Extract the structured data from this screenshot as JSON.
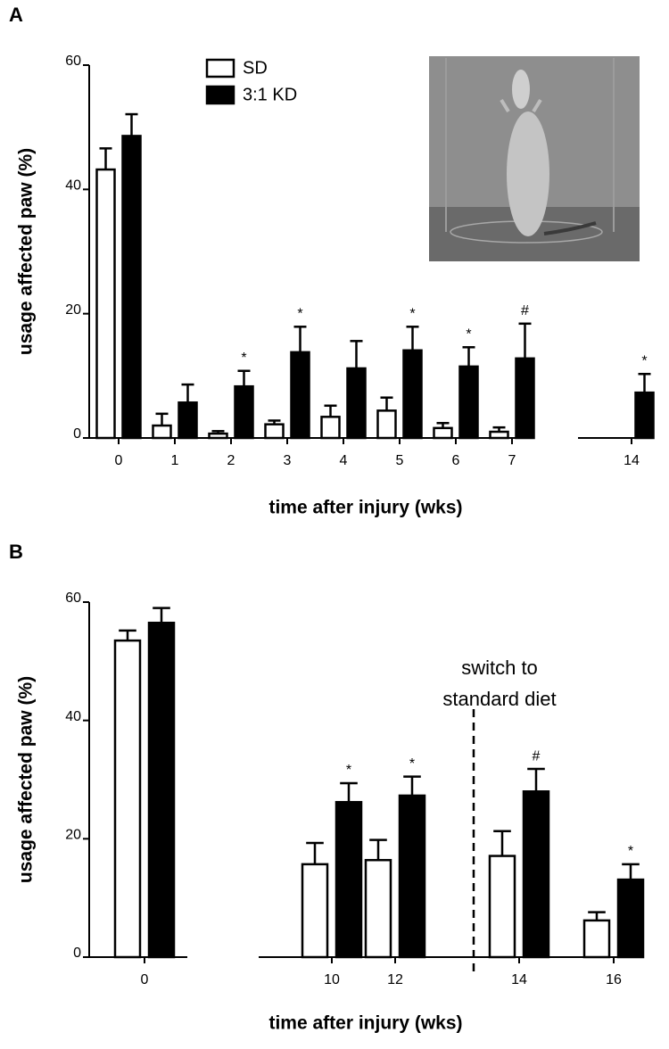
{
  "chart_data": [
    {
      "type": "bar",
      "panel": "A",
      "ylabel": "usage affected paw (%)",
      "xlabel": "time after injury (wks)",
      "categories": [
        "0",
        "1",
        "2",
        "3",
        "4",
        "5",
        "6",
        "7",
        "14"
      ],
      "series": [
        {
          "name": "SD",
          "color": "#ffffff",
          "values": [
            43.2,
            2.0,
            0.7,
            2.2,
            3.4,
            4.4,
            1.6,
            1.0,
            null
          ],
          "errors": [
            3.4,
            1.9,
            0.4,
            0.6,
            1.8,
            2.1,
            0.8,
            0.7,
            null
          ]
        },
        {
          "name": "3:1 KD",
          "color": "#000000",
          "values": [
            48.6,
            5.7,
            8.3,
            13.8,
            11.2,
            14.1,
            11.5,
            12.8,
            7.3
          ],
          "errors": [
            3.5,
            2.9,
            2.5,
            4.1,
            4.4,
            3.8,
            3.1,
            5.6,
            3.0
          ],
          "significance": [
            null,
            null,
            "*",
            "*",
            null,
            "*",
            "*",
            "#",
            "*"
          ]
        }
      ],
      "ylim": [
        0,
        60
      ],
      "yticks": [
        0,
        20,
        40,
        60
      ],
      "legend": "top-left"
    },
    {
      "type": "bar",
      "panel": "B",
      "ylabel": "usage affected paw (%)",
      "xlabel": "time after injury (wks)",
      "annotation": [
        "switch to",
        "standard diet"
      ],
      "categories": [
        "0",
        "10",
        "12",
        "14",
        "16"
      ],
      "series": [
        {
          "color": "#ffffff",
          "values": [
            53.5,
            15.7,
            16.4,
            17.1,
            6.2
          ],
          "errors": [
            1.7,
            3.6,
            3.4,
            4.2,
            1.4
          ]
        },
        {
          "color": "#000000",
          "values": [
            56.5,
            26.2,
            27.3,
            28.0,
            13.1
          ],
          "errors": [
            2.5,
            3.2,
            3.2,
            3.8,
            2.6
          ],
          "significance": [
            null,
            "*",
            "*",
            "#",
            "*"
          ]
        }
      ],
      "ylim": [
        0,
        60
      ],
      "yticks": [
        0,
        20,
        40,
        60
      ]
    }
  ]
}
